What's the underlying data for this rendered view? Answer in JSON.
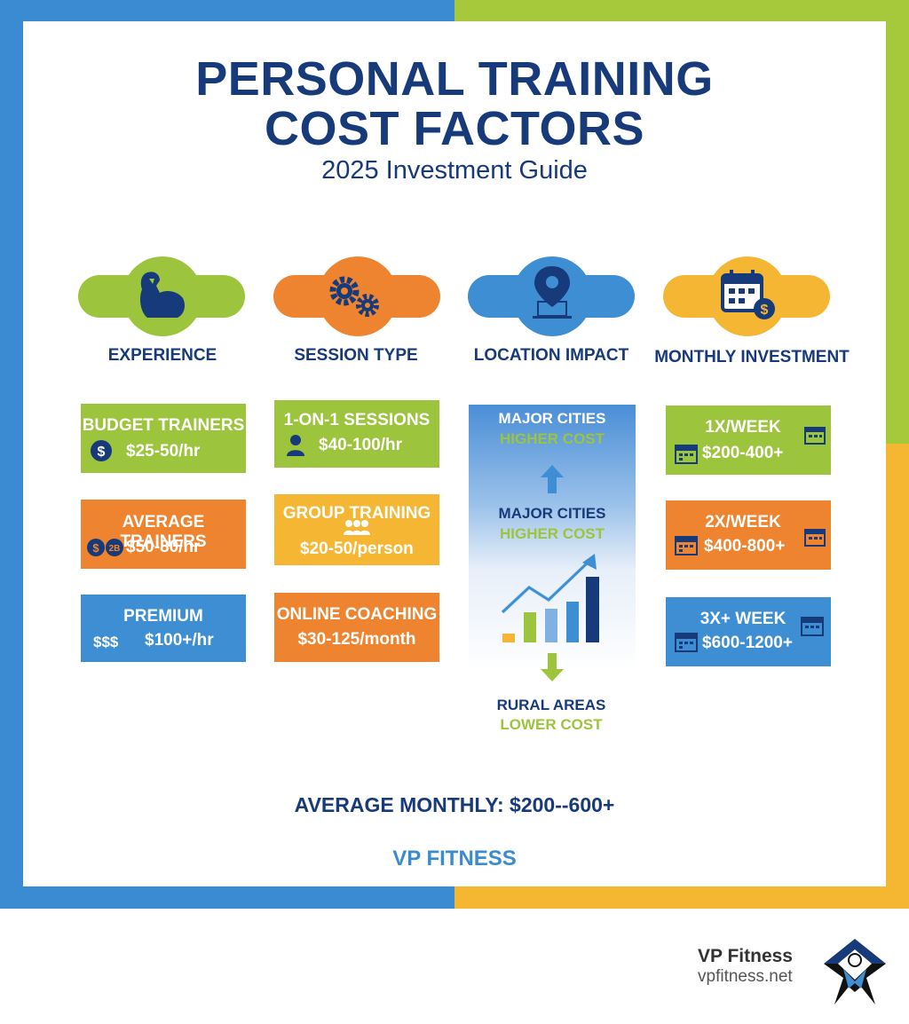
{
  "header": {
    "title_line1": "PERSONAL TRAINING",
    "title_line2": "COST FACTORS",
    "subtitle": "2025 Investment Guide"
  },
  "columns": [
    {
      "label": "EXPERIENCE",
      "icon": "flexed-arm-icon",
      "color": "#9cc43c"
    },
    {
      "label": "SESSION TYPE",
      "icon": "gears-icon",
      "color": "#ef8430"
    },
    {
      "label": "LOCATION IMPACT",
      "icon": "map-pin-icon",
      "color": "#3e8ed3"
    },
    {
      "label": "MONTHLY INVESTMENT",
      "icon": "calendar-dollar-icon",
      "color": "#f5b733"
    }
  ],
  "experience": [
    {
      "title": "BUDGET TRAINERS",
      "price": "$25-50/hr",
      "icon_text": "$"
    },
    {
      "title": "AVERAGE TRAINERS",
      "price": "$50-80/hr",
      "icon_text": "$ 2ʙ"
    },
    {
      "title": "PREMIUM",
      "price": "$100+/hr",
      "icon_text": "$$$"
    }
  ],
  "session_type": [
    {
      "title": "1-ON-1 SESSIONS",
      "price": "$40-100/hr"
    },
    {
      "title": "GROUP TRAINING",
      "price": "$20-50/person"
    },
    {
      "title": "ONLINE COACHING",
      "price": "$30-125/month"
    }
  ],
  "location": {
    "top_label": "MAJOR CITIES",
    "top_sub": "HIGHER COST",
    "mid_label": "MAJOR CITIES",
    "mid_sub": "HIGHER COST",
    "bottom_label": "RURAL AREAS",
    "bottom_sub": "LOWER COST"
  },
  "monthly": [
    {
      "title": "1X/WEEK",
      "price": "$200-400+"
    },
    {
      "title": "2X/WEEK",
      "price": "$400-800+"
    },
    {
      "title": "3X+ WEEK",
      "price": "$600-1200+"
    }
  ],
  "summary": "AVERAGE MONTHLY: $200--600+",
  "brand": "VP FITNESS",
  "footer": {
    "name": "VP Fitness",
    "url": "vpfitness.net"
  }
}
